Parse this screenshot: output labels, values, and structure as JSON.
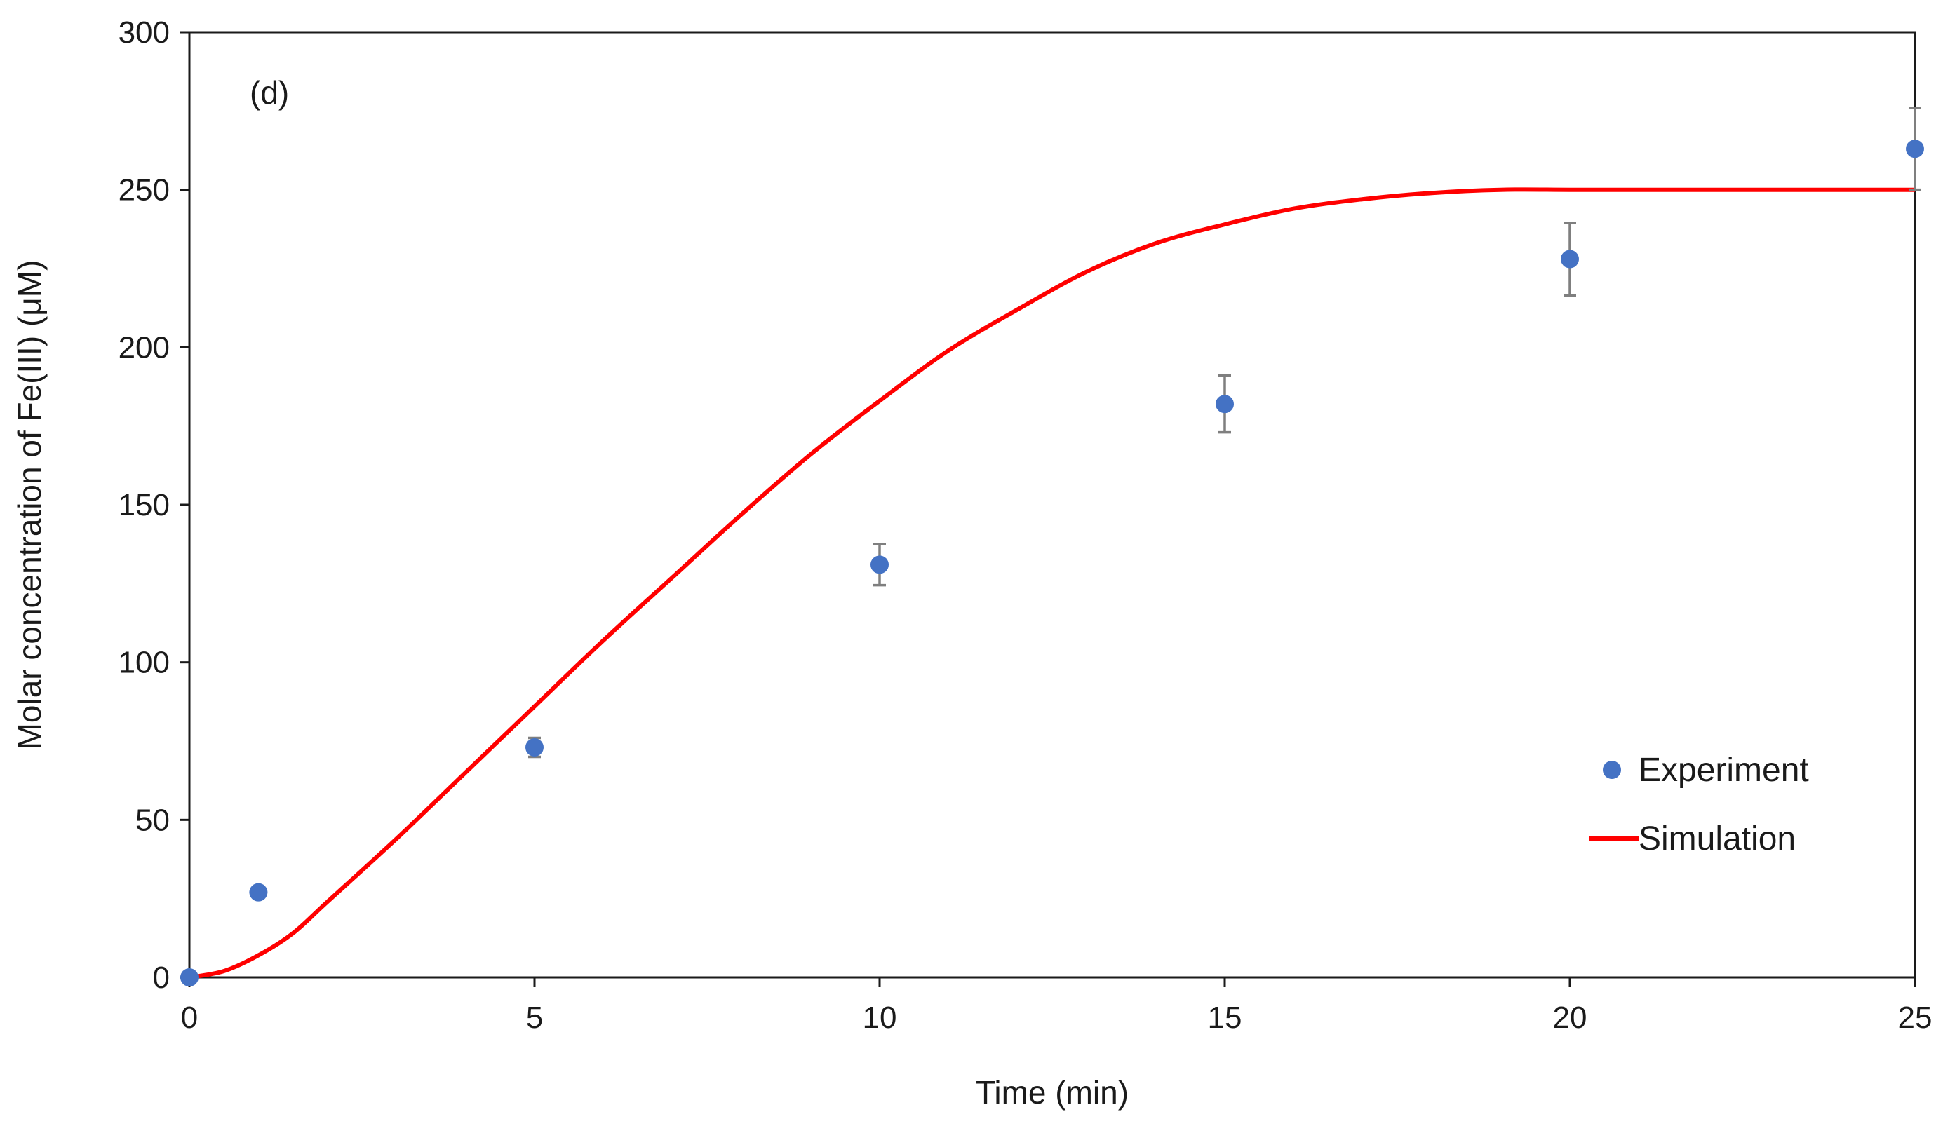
{
  "chart_data": {
    "type": "scatter",
    "title": "",
    "panel_label": "(d)",
    "xlabel": "Time (min)",
    "ylabel": "Molar concentration of Fe(III) (μM)",
    "xlim": [
      0,
      25
    ],
    "ylim": [
      0,
      300
    ],
    "x_ticks": [
      0,
      5,
      10,
      15,
      20,
      25
    ],
    "y_ticks": [
      0,
      50,
      100,
      150,
      200,
      250,
      300
    ],
    "grid": false,
    "legend_position": "bottom-right",
    "colors": {
      "experiment": "#4472C4",
      "simulation": "#FF0000",
      "error_bar": "#7F7F7F"
    },
    "series": [
      {
        "name": "Experiment",
        "kind": "scatter",
        "x": [
          0,
          1,
          5,
          10,
          15,
          20,
          25
        ],
        "y": [
          0,
          27,
          73,
          131,
          182,
          228,
          263
        ],
        "error": [
          0,
          0,
          3,
          6.5,
          9,
          11.5,
          13
        ]
      },
      {
        "name": "Simulation",
        "kind": "line",
        "x": [
          0,
          0.5,
          1,
          1.5,
          2,
          3,
          4,
          5,
          6,
          7,
          8,
          9,
          10,
          11,
          12,
          13,
          14,
          15,
          16,
          17,
          18,
          19,
          20,
          21,
          22,
          23,
          24,
          25
        ],
        "y": [
          0,
          2,
          7,
          14,
          24,
          44,
          65,
          86,
          107,
          127,
          147,
          166,
          183,
          199,
          212,
          224,
          233,
          239,
          244,
          247,
          249,
          250,
          250,
          250,
          250,
          250,
          250,
          250
        ]
      }
    ]
  }
}
